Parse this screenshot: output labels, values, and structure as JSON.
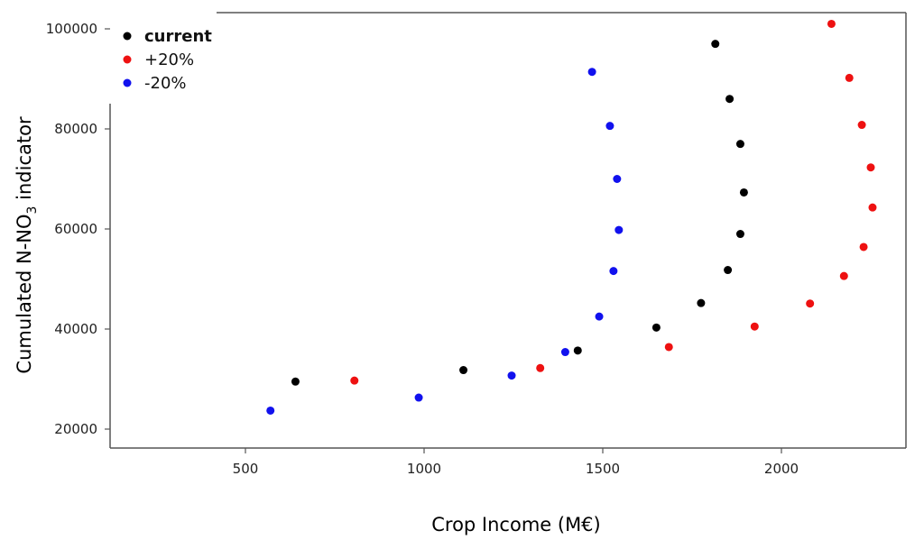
{
  "chart_data": {
    "type": "scatter",
    "xlabel": "Crop Income (M€)",
    "ylabel_main": "Cumulated N-NO",
    "ylabel_sub": "3",
    "ylabel_tail": " indicator",
    "xlim": [
      100,
      2400
    ],
    "ylim": [
      16000,
      104000
    ],
    "x_ticks": [
      500,
      1000,
      1500,
      2000
    ],
    "x_tick_labels": [
      "500",
      "1000",
      "1500",
      "2000"
    ],
    "y_ticks": [
      20000,
      40000,
      60000,
      80000,
      100000
    ],
    "y_tick_labels": [
      "20000",
      "40000",
      "60000",
      "80000",
      "100000"
    ],
    "legend_position": "top-left",
    "series": [
      {
        "name": "current",
        "color": "#000000",
        "points": [
          [
            640,
            29500
          ],
          [
            1110,
            31800
          ],
          [
            1430,
            35700
          ],
          [
            1650,
            40300
          ],
          [
            1775,
            45200
          ],
          [
            1850,
            51800
          ],
          [
            1885,
            59000
          ],
          [
            1895,
            67300
          ],
          [
            1885,
            77000
          ],
          [
            1855,
            86000
          ],
          [
            1815,
            97000
          ]
        ]
      },
      {
        "name": "+20%",
        "color": "#ee1111",
        "points": [
          [
            805,
            29700
          ],
          [
            1325,
            32200
          ],
          [
            1685,
            36400
          ],
          [
            1925,
            40500
          ],
          [
            2080,
            45100
          ],
          [
            2175,
            50600
          ],
          [
            2230,
            56400
          ],
          [
            2255,
            64300
          ],
          [
            2250,
            72300
          ],
          [
            2225,
            80800
          ],
          [
            2190,
            90200
          ],
          [
            2140,
            101000
          ]
        ]
      },
      {
        "name": "-20%",
        "color": "#1111ee",
        "points": [
          [
            570,
            23700
          ],
          [
            985,
            26300
          ],
          [
            1245,
            30700
          ],
          [
            1395,
            35400
          ],
          [
            1490,
            42500
          ],
          [
            1530,
            51600
          ],
          [
            1545,
            59800
          ],
          [
            1540,
            70000
          ],
          [
            1520,
            80600
          ],
          [
            1470,
            91400
          ]
        ]
      }
    ]
  }
}
